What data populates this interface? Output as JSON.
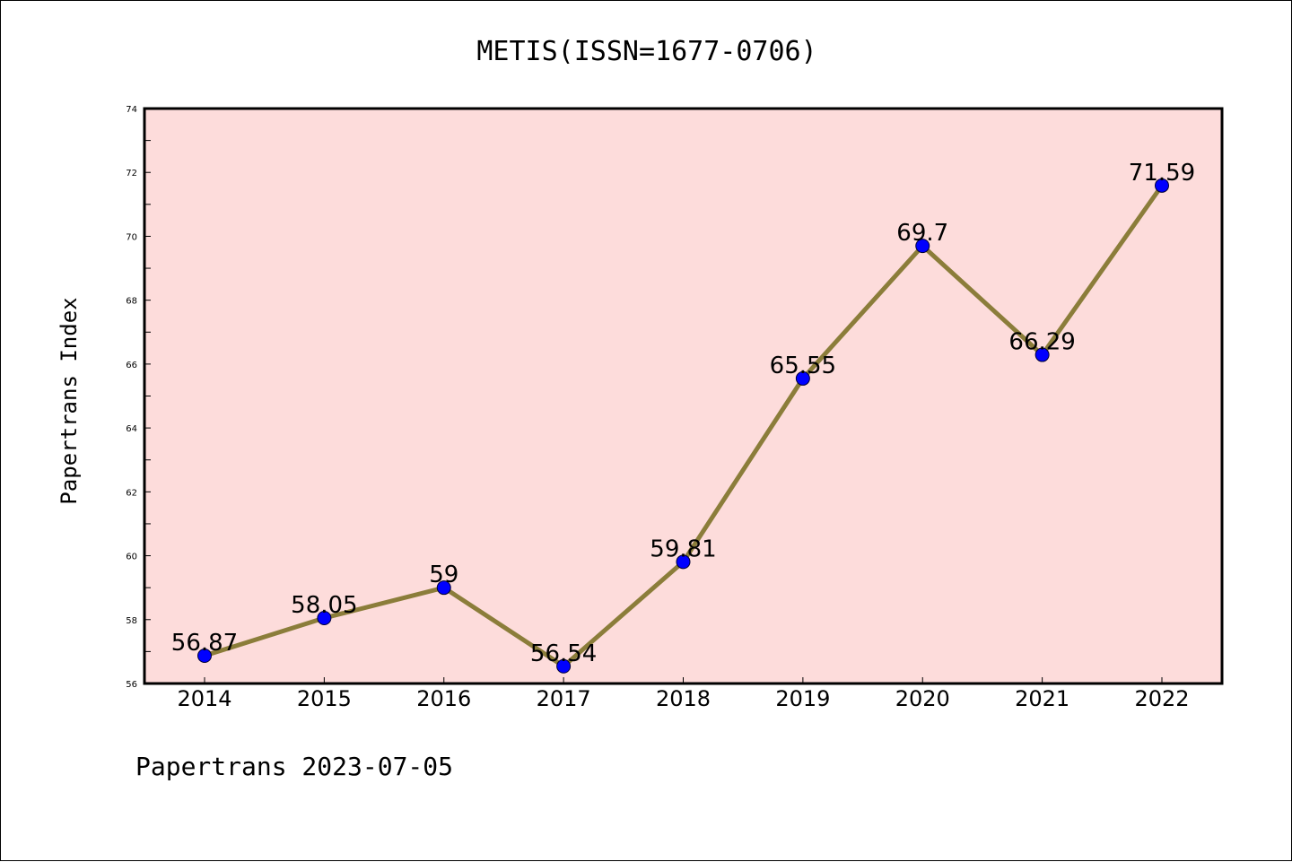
{
  "chart_data": {
    "type": "line",
    "title": "METIS(ISSN=1677-0706)",
    "ylabel": "Papertrans Index",
    "xlabel": "",
    "categories": [
      "2014",
      "2015",
      "2016",
      "2017",
      "2018",
      "2019",
      "2020",
      "2021",
      "2022"
    ],
    "values": [
      56.87,
      58.05,
      59,
      56.54,
      59.81,
      65.55,
      69.7,
      66.29,
      71.59
    ],
    "data_labels": [
      "56.87",
      "58.05",
      "59",
      "56.54",
      "59.81",
      "65.55",
      "69.7",
      "66.29",
      "71.59"
    ],
    "ylim": [
      56,
      74
    ],
    "yticks": [
      56,
      58,
      60,
      62,
      64,
      66,
      68,
      70,
      72,
      74
    ],
    "grid": false,
    "legend": "none",
    "colors": {
      "plot_background": "#fddcdb",
      "line": "#8b7d3a",
      "marker": "#0000ff",
      "axes": "#000000"
    }
  },
  "footer": {
    "source_text": "Papertrans 2023-07-05"
  }
}
